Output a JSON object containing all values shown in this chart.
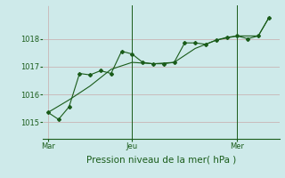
{
  "title": "",
  "xlabel": "Pression niveau de la mer( hPa )",
  "background_color": "#ceeaea",
  "grid_color": "#c8aaaa",
  "line_color": "#1a5c1a",
  "tick_label_color": "#1a5c1a",
  "label_color": "#1a5c1a",
  "ylim": [
    1014.4,
    1019.2
  ],
  "yticks": [
    1015,
    1016,
    1017,
    1018
  ],
  "xtick_positions": [
    0,
    8,
    18
  ],
  "xtick_labels": [
    "Mar",
    "Jeu",
    "Mer"
  ],
  "vline_x1": 8,
  "vline_x2": 18,
  "xlim": [
    -0.5,
    22
  ],
  "series1_x": [
    0,
    1,
    2,
    3,
    4,
    5,
    6,
    7,
    8,
    9,
    10,
    11,
    12,
    13,
    14,
    15,
    16,
    17,
    18,
    19,
    20,
    21
  ],
  "series1_y": [
    1015.35,
    1015.1,
    1015.55,
    1016.75,
    1016.7,
    1016.85,
    1016.75,
    1017.55,
    1017.45,
    1017.15,
    1017.1,
    1017.1,
    1017.15,
    1017.85,
    1017.85,
    1017.8,
    1017.95,
    1018.05,
    1018.1,
    1018.0,
    1018.1,
    1018.75
  ],
  "series2_x": [
    0,
    2,
    4,
    6,
    8,
    10,
    12,
    14,
    16,
    18,
    20,
    21
  ],
  "series2_y": [
    1015.35,
    1015.8,
    1016.3,
    1016.9,
    1017.15,
    1017.1,
    1017.15,
    1017.65,
    1017.95,
    1018.1,
    1018.1,
    1018.75
  ]
}
